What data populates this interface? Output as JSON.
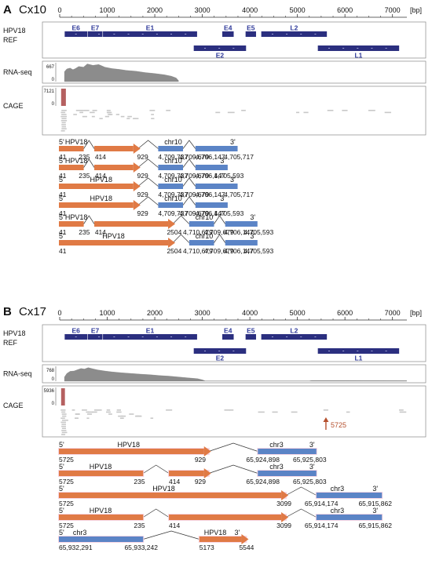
{
  "axis_unit": "[bp]",
  "colors": {
    "hpv_exon": "#e07a45",
    "host_exon": "#5b84c6",
    "gene_bar": "#2b2f7f",
    "gene_label": "#2f3a9a",
    "coverage": "#8c8c8c",
    "cage_read": "#c8c8c8",
    "cage_peak": "#b56060",
    "tss_arrow": "#b5502e"
  },
  "panels": [
    {
      "letter": "A",
      "sample": "Cx10",
      "axis_ticks": [
        "0",
        "1000",
        "2000",
        "3000",
        "4000",
        "5000",
        "6000",
        "7000"
      ],
      "track_labels": {
        "hpv18": "HPV18",
        "ref": "REF",
        "rnaseq": "RNA-seq",
        "cage": "CAGE"
      },
      "rnaseq_max": "667",
      "cage_max": "7121",
      "zero": "0",
      "genes": [
        {
          "name": "E6",
          "start": 105,
          "end": 580,
          "row": 1
        },
        {
          "name": "E7",
          "start": 590,
          "end": 900,
          "row": 1
        },
        {
          "name": "E1",
          "start": 910,
          "end": 2890,
          "row": 1
        },
        {
          "name": "E4",
          "start": 3420,
          "end": 3660,
          "row": 1
        },
        {
          "name": "E5",
          "start": 3910,
          "end": 4130,
          "row": 1
        },
        {
          "name": "L2",
          "start": 4240,
          "end": 5620,
          "row": 1
        },
        {
          "name": "E2",
          "start": 2820,
          "end": 3920,
          "row": 2
        },
        {
          "name": "L1",
          "start": 5430,
          "end": 7140,
          "row": 2
        }
      ],
      "rnaseq_profile": [
        [
          100,
          0.55
        ],
        [
          150,
          0.7
        ],
        [
          220,
          0.75
        ],
        [
          280,
          0.66
        ],
        [
          330,
          0.72
        ],
        [
          400,
          0.84
        ],
        [
          500,
          0.8
        ],
        [
          580,
          0.98
        ],
        [
          700,
          0.9
        ],
        [
          820,
          0.95
        ],
        [
          950,
          0.8
        ],
        [
          1100,
          0.72
        ],
        [
          1250,
          0.68
        ],
        [
          1400,
          0.62
        ],
        [
          1600,
          0.58
        ],
        [
          1800,
          0.5
        ],
        [
          2000,
          0.45
        ],
        [
          2200,
          0.38
        ],
        [
          2350,
          0.3
        ],
        [
          2450,
          0.2
        ],
        [
          2500,
          0.05
        ]
      ],
      "cage_peak": {
        "start": 30,
        "end": 130
      },
      "cage_reads_span": [
        10,
        7200
      ],
      "transcripts": [
        {
          "exons": [
            {
              "type": "hpv",
              "s": 0.0,
              "e": 0.2
            },
            {
              "type": "hpv",
              "s": 0.285,
              "e": 0.6,
              "arrow": true
            },
            {
              "type": "host",
              "s": 0.8,
              "e": 1.0
            },
            {
              "type": "host",
              "s": 1.1,
              "e": 1.44
            }
          ],
          "top": [
            {
              "x": 0.0,
              "t": "5'"
            },
            {
              "x": 0.05,
              "t": "HPV18"
            },
            {
              "x": 0.85,
              "t": "chr10"
            },
            {
              "x": 1.38,
              "t": "3'"
            }
          ],
          "bottom": [
            {
              "x": 0.0,
              "t": "41"
            },
            {
              "x": 0.16,
              "t": "235"
            },
            {
              "x": 0.29,
              "t": "414"
            },
            {
              "x": 0.63,
              "t": "929"
            },
            {
              "x": 0.8,
              "t": "4,709,737"
            },
            {
              "x": 0.97,
              "t": "4,709,679"
            },
            {
              "x": 1.1,
              "t": "4,706,147"
            },
            {
              "x": 1.33,
              "t": "4,705,717"
            }
          ]
        },
        {
          "exons": [
            {
              "type": "hpv",
              "s": 0.0,
              "e": 0.2
            },
            {
              "type": "hpv",
              "s": 0.285,
              "e": 0.6,
              "arrow": true
            },
            {
              "type": "host",
              "s": 0.8,
              "e": 1.0
            },
            {
              "type": "host",
              "s": 1.1,
              "e": 1.36
            }
          ],
          "top": [
            {
              "x": 0.0,
              "t": "5'"
            },
            {
              "x": 0.05,
              "t": "HPV18"
            },
            {
              "x": 0.85,
              "t": "chr10"
            },
            {
              "x": 1.3,
              "t": "3'"
            }
          ],
          "bottom": [
            {
              "x": 0.0,
              "t": "41"
            },
            {
              "x": 0.16,
              "t": "235"
            },
            {
              "x": 0.29,
              "t": "414"
            },
            {
              "x": 0.63,
              "t": "929"
            },
            {
              "x": 0.8,
              "t": "4,709,737"
            },
            {
              "x": 0.97,
              "t": "4,709,679"
            },
            {
              "x": 1.1,
              "t": "4,706,147"
            },
            {
              "x": 1.25,
              "t": "4,705,593"
            }
          ]
        },
        {
          "exons": [
            {
              "type": "hpv",
              "s": 0.0,
              "e": 0.6,
              "arrow": true
            },
            {
              "type": "host",
              "s": 0.8,
              "e": 1.0
            },
            {
              "type": "host",
              "s": 1.1,
              "e": 1.44
            }
          ],
          "top": [
            {
              "x": 0.0,
              "t": "5'"
            },
            {
              "x": 0.25,
              "t": "HPV18"
            },
            {
              "x": 0.85,
              "t": "chr10"
            },
            {
              "x": 1.38,
              "t": "3'"
            }
          ],
          "bottom": [
            {
              "x": 0.0,
              "t": "41"
            },
            {
              "x": 0.63,
              "t": "929"
            },
            {
              "x": 0.8,
              "t": "4,709,737"
            },
            {
              "x": 0.97,
              "t": "4,709,679"
            },
            {
              "x": 1.1,
              "t": "4,706,147"
            },
            {
              "x": 1.33,
              "t": "4,705,717"
            }
          ]
        },
        {
          "exons": [
            {
              "type": "hpv",
              "s": 0.0,
              "e": 0.6,
              "arrow": true
            },
            {
              "type": "host",
              "s": 0.8,
              "e": 1.0
            },
            {
              "type": "host",
              "s": 1.1,
              "e": 1.36
            }
          ],
          "top": [
            {
              "x": 0.0,
              "t": "5'"
            },
            {
              "x": 0.25,
              "t": "HPV18"
            },
            {
              "x": 0.85,
              "t": "chr10"
            },
            {
              "x": 1.3,
              "t": "3'"
            }
          ],
          "bottom": [
            {
              "x": 0.0,
              "t": "41"
            },
            {
              "x": 0.63,
              "t": "929"
            },
            {
              "x": 0.8,
              "t": "4,709,737"
            },
            {
              "x": 0.97,
              "t": "4,709,679"
            },
            {
              "x": 1.1,
              "t": "4,706,147"
            },
            {
              "x": 1.25,
              "t": "4,705,593"
            }
          ]
        },
        {
          "exons": [
            {
              "type": "hpv",
              "s": 0.0,
              "e": 0.2
            },
            {
              "type": "hpv",
              "s": 0.285,
              "e": 0.88,
              "arrow": true
            },
            {
              "type": "host",
              "s": 1.05,
              "e": 1.25
            },
            {
              "type": "host",
              "s": 1.34,
              "e": 1.6
            }
          ],
          "top": [
            {
              "x": 0.0,
              "t": "5'"
            },
            {
              "x": 0.05,
              "t": "HPV18"
            },
            {
              "x": 1.1,
              "t": "chr10"
            },
            {
              "x": 1.54,
              "t": "3'"
            }
          ],
          "bottom": [
            {
              "x": 0.0,
              "t": "41"
            },
            {
              "x": 0.16,
              "t": "235"
            },
            {
              "x": 0.29,
              "t": "414"
            },
            {
              "x": 0.87,
              "t": "2504"
            },
            {
              "x": 1.0,
              "t": "4,710,679"
            },
            {
              "x": 1.17,
              "t": "4,709,679"
            },
            {
              "x": 1.33,
              "t": "4,706,147"
            },
            {
              "x": 1.49,
              "t": "4,705,593"
            }
          ]
        },
        {
          "exons": [
            {
              "type": "hpv",
              "s": 0.0,
              "e": 0.88,
              "arrow": true
            },
            {
              "type": "host",
              "s": 1.05,
              "e": 1.25
            },
            {
              "type": "host",
              "s": 1.34,
              "e": 1.6
            }
          ],
          "top": [
            {
              "x": 0.0,
              "t": "5'"
            },
            {
              "x": 0.35,
              "t": "HPV18"
            },
            {
              "x": 1.1,
              "t": "chr10"
            },
            {
              "x": 1.54,
              "t": "3'"
            }
          ],
          "bottom": [
            {
              "x": 0.0,
              "t": "41"
            },
            {
              "x": 0.87,
              "t": "2504"
            },
            {
              "x": 1.0,
              "t": "4,710,679"
            },
            {
              "x": 1.17,
              "t": "4,709,679"
            },
            {
              "x": 1.33,
              "t": "4,706,147"
            },
            {
              "x": 1.49,
              "t": "4,705,593"
            }
          ]
        }
      ]
    },
    {
      "letter": "B",
      "sample": "Cx17",
      "axis_ticks": [
        "0",
        "1000",
        "2000",
        "3000",
        "4000",
        "5000",
        "6000",
        "7000"
      ],
      "track_labels": {
        "hpv18": "HPV18",
        "ref": "REF",
        "rnaseq": "RNA-seq",
        "cage": "CAGE"
      },
      "rnaseq_max": "768",
      "cage_max": "5936",
      "zero": "0",
      "tss_label": "5725",
      "tss_pos": 5600,
      "genes": [
        {
          "name": "E6",
          "start": 105,
          "end": 580,
          "row": 1
        },
        {
          "name": "E7",
          "start": 590,
          "end": 900,
          "row": 1
        },
        {
          "name": "E1",
          "start": 910,
          "end": 2890,
          "row": 1
        },
        {
          "name": "E4",
          "start": 3420,
          "end": 3660,
          "row": 1
        },
        {
          "name": "E5",
          "start": 3910,
          "end": 4130,
          "row": 1
        },
        {
          "name": "L2",
          "start": 4240,
          "end": 5620,
          "row": 1
        },
        {
          "name": "E2",
          "start": 2820,
          "end": 3920,
          "row": 2
        },
        {
          "name": "L1",
          "start": 5430,
          "end": 7140,
          "row": 2
        }
      ],
      "rnaseq_profile": [
        [
          100,
          0.3
        ],
        [
          150,
          0.55
        ],
        [
          220,
          0.7
        ],
        [
          300,
          0.72
        ],
        [
          380,
          0.82
        ],
        [
          450,
          0.9
        ],
        [
          520,
          0.86
        ],
        [
          600,
          0.96
        ],
        [
          700,
          0.88
        ],
        [
          800,
          0.8
        ],
        [
          950,
          0.72
        ],
        [
          1100,
          0.66
        ],
        [
          1300,
          0.6
        ],
        [
          1500,
          0.55
        ],
        [
          1700,
          0.5
        ],
        [
          1900,
          0.46
        ],
        [
          2100,
          0.4
        ],
        [
          2300,
          0.36
        ],
        [
          2500,
          0.3
        ],
        [
          2700,
          0.24
        ],
        [
          2900,
          0.18
        ],
        [
          3000,
          0.1
        ],
        [
          3060,
          0.02
        ],
        [
          5250,
          0.02
        ],
        [
          5300,
          0.05
        ],
        [
          6000,
          0.05
        ],
        [
          7300,
          0.04
        ]
      ],
      "cage_peak": {
        "start": 30,
        "end": 110
      },
      "cage_reads_span": [
        10,
        7300
      ],
      "transcripts": [
        {
          "exons": [
            {
              "type": "hpv",
              "s": 0.0,
              "e": 0.62,
              "arrow": true
            },
            {
              "type": "host",
              "s": 0.85,
              "e": 1.1
            }
          ],
          "top": [
            {
              "x": 0.0,
              "t": "5'"
            },
            {
              "x": 0.25,
              "t": "HPV18"
            },
            {
              "x": 0.9,
              "t": "chr3"
            },
            {
              "x": 1.07,
              "t": "3'"
            }
          ],
          "bottom": [
            {
              "x": 0.0,
              "t": "5725"
            },
            {
              "x": 0.58,
              "t": "929"
            },
            {
              "x": 0.8,
              "t": "65,924,898"
            },
            {
              "x": 1.0,
              "t": "65,925,803"
            }
          ]
        },
        {
          "exons": [
            {
              "type": "hpv",
              "s": 0.0,
              "e": 0.36
            },
            {
              "type": "hpv",
              "s": 0.47,
              "e": 0.62,
              "arrow": true
            },
            {
              "type": "host",
              "s": 0.85,
              "e": 1.1
            }
          ],
          "top": [
            {
              "x": 0.0,
              "t": "5'"
            },
            {
              "x": 0.13,
              "t": "HPV18"
            },
            {
              "x": 0.9,
              "t": "chr3"
            },
            {
              "x": 1.07,
              "t": "3'"
            }
          ],
          "bottom": [
            {
              "x": 0.0,
              "t": "5725"
            },
            {
              "x": 0.32,
              "t": "235"
            },
            {
              "x": 0.47,
              "t": "414"
            },
            {
              "x": 0.58,
              "t": "929"
            },
            {
              "x": 0.8,
              "t": "65,924,898"
            },
            {
              "x": 1.0,
              "t": "65,925,803"
            }
          ]
        },
        {
          "exons": [
            {
              "type": "hpv",
              "s": 0.0,
              "e": 0.95,
              "arrow": true
            },
            {
              "type": "host",
              "s": 1.1,
              "e": 1.38
            }
          ],
          "top": [
            {
              "x": 0.0,
              "t": "5'"
            },
            {
              "x": 0.4,
              "t": "HPV18"
            },
            {
              "x": 1.16,
              "t": "chr3"
            },
            {
              "x": 1.34,
              "t": "3'"
            }
          ],
          "bottom": [
            {
              "x": 0.0,
              "t": "5725"
            },
            {
              "x": 0.93,
              "t": "3099"
            },
            {
              "x": 1.05,
              "t": "65,914,174"
            },
            {
              "x": 1.28,
              "t": "65,915,862"
            }
          ]
        },
        {
          "exons": [
            {
              "type": "hpv",
              "s": 0.0,
              "e": 0.36
            },
            {
              "type": "hpv",
              "s": 0.47,
              "e": 0.95,
              "arrow": true
            },
            {
              "type": "host",
              "s": 1.1,
              "e": 1.38
            }
          ],
          "top": [
            {
              "x": 0.0,
              "t": "5'"
            },
            {
              "x": 0.13,
              "t": "HPV18"
            },
            {
              "x": 1.16,
              "t": "chr3"
            },
            {
              "x": 1.34,
              "t": "3'"
            }
          ],
          "bottom": [
            {
              "x": 0.0,
              "t": "5725"
            },
            {
              "x": 0.32,
              "t": "235"
            },
            {
              "x": 0.47,
              "t": "414"
            },
            {
              "x": 0.93,
              "t": "3099"
            },
            {
              "x": 1.05,
              "t": "65,914,174"
            },
            {
              "x": 1.28,
              "t": "65,915,862"
            }
          ]
        },
        {
          "exons": [
            {
              "type": "host",
              "s": 0.0,
              "e": 0.36
            },
            {
              "type": "hpv",
              "s": 0.6,
              "e": 0.78,
              "arrow": true
            }
          ],
          "top": [
            {
              "x": 0.0,
              "t": "5'"
            },
            {
              "x": 0.06,
              "t": "chr3"
            },
            {
              "x": 0.62,
              "t": "HPV18"
            },
            {
              "x": 0.75,
              "t": "3'"
            }
          ],
          "bottom": [
            {
              "x": 0.0,
              "t": "65,932,291"
            },
            {
              "x": 0.28,
              "t": "65,933,242"
            },
            {
              "x": 0.6,
              "t": "5173"
            },
            {
              "x": 0.77,
              "t": "5544"
            }
          ]
        }
      ]
    }
  ]
}
